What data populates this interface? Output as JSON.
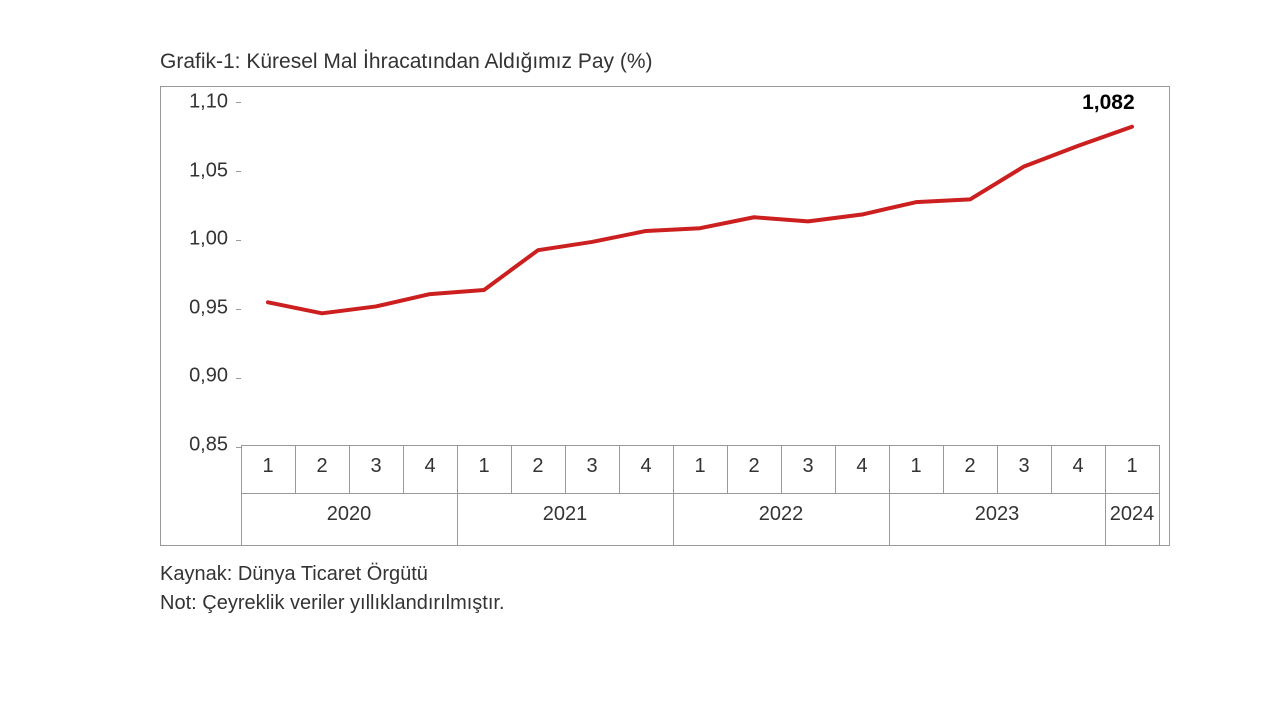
{
  "chart": {
    "type": "line",
    "title": "Grafik-1: Küresel Mal İhracatından Aldığımız Pay (%)",
    "background_color": "#ffffff",
    "border_color": "#999999",
    "title_fontsize": 21,
    "title_color": "#333333",
    "y": {
      "min": 0.85,
      "max": 1.1,
      "ticks": [
        0.85,
        0.9,
        0.95,
        1.0,
        1.05,
        1.1
      ],
      "tick_labels": [
        "0,85",
        "0,90",
        "0,95",
        "1,00",
        "1,05",
        "1,10"
      ],
      "label_fontsize": 20,
      "label_color": "#333333"
    },
    "x": {
      "years": [
        {
          "year": "2020",
          "quarters": [
            "1",
            "2",
            "3",
            "4"
          ]
        },
        {
          "year": "2021",
          "quarters": [
            "1",
            "2",
            "3",
            "4"
          ]
        },
        {
          "year": "2022",
          "quarters": [
            "1",
            "2",
            "3",
            "4"
          ]
        },
        {
          "year": "2023",
          "quarters": [
            "1",
            "2",
            "3",
            "4"
          ]
        },
        {
          "year": "2024",
          "quarters": [
            "1"
          ]
        }
      ],
      "label_fontsize": 20,
      "label_color": "#333333"
    },
    "series": {
      "color": "#cc1f1f",
      "line_width": 4,
      "values": [
        0.954,
        0.946,
        0.951,
        0.96,
        0.963,
        0.992,
        0.998,
        1.006,
        1.008,
        1.016,
        1.013,
        1.018,
        1.027,
        1.029,
        1.053,
        1.068,
        1.082
      ],
      "end_label": "1,082",
      "end_label_fontsize": 21,
      "end_label_color": "#000000"
    }
  },
  "footer": {
    "source_prefix": "Kaynak: ",
    "source": "Dünya Ticaret Örgütü",
    "note_prefix": "Not: ",
    "note": "Çeyreklik veriler yıllıklandırılmıştır.",
    "fontsize": 20,
    "color": "#333333"
  }
}
